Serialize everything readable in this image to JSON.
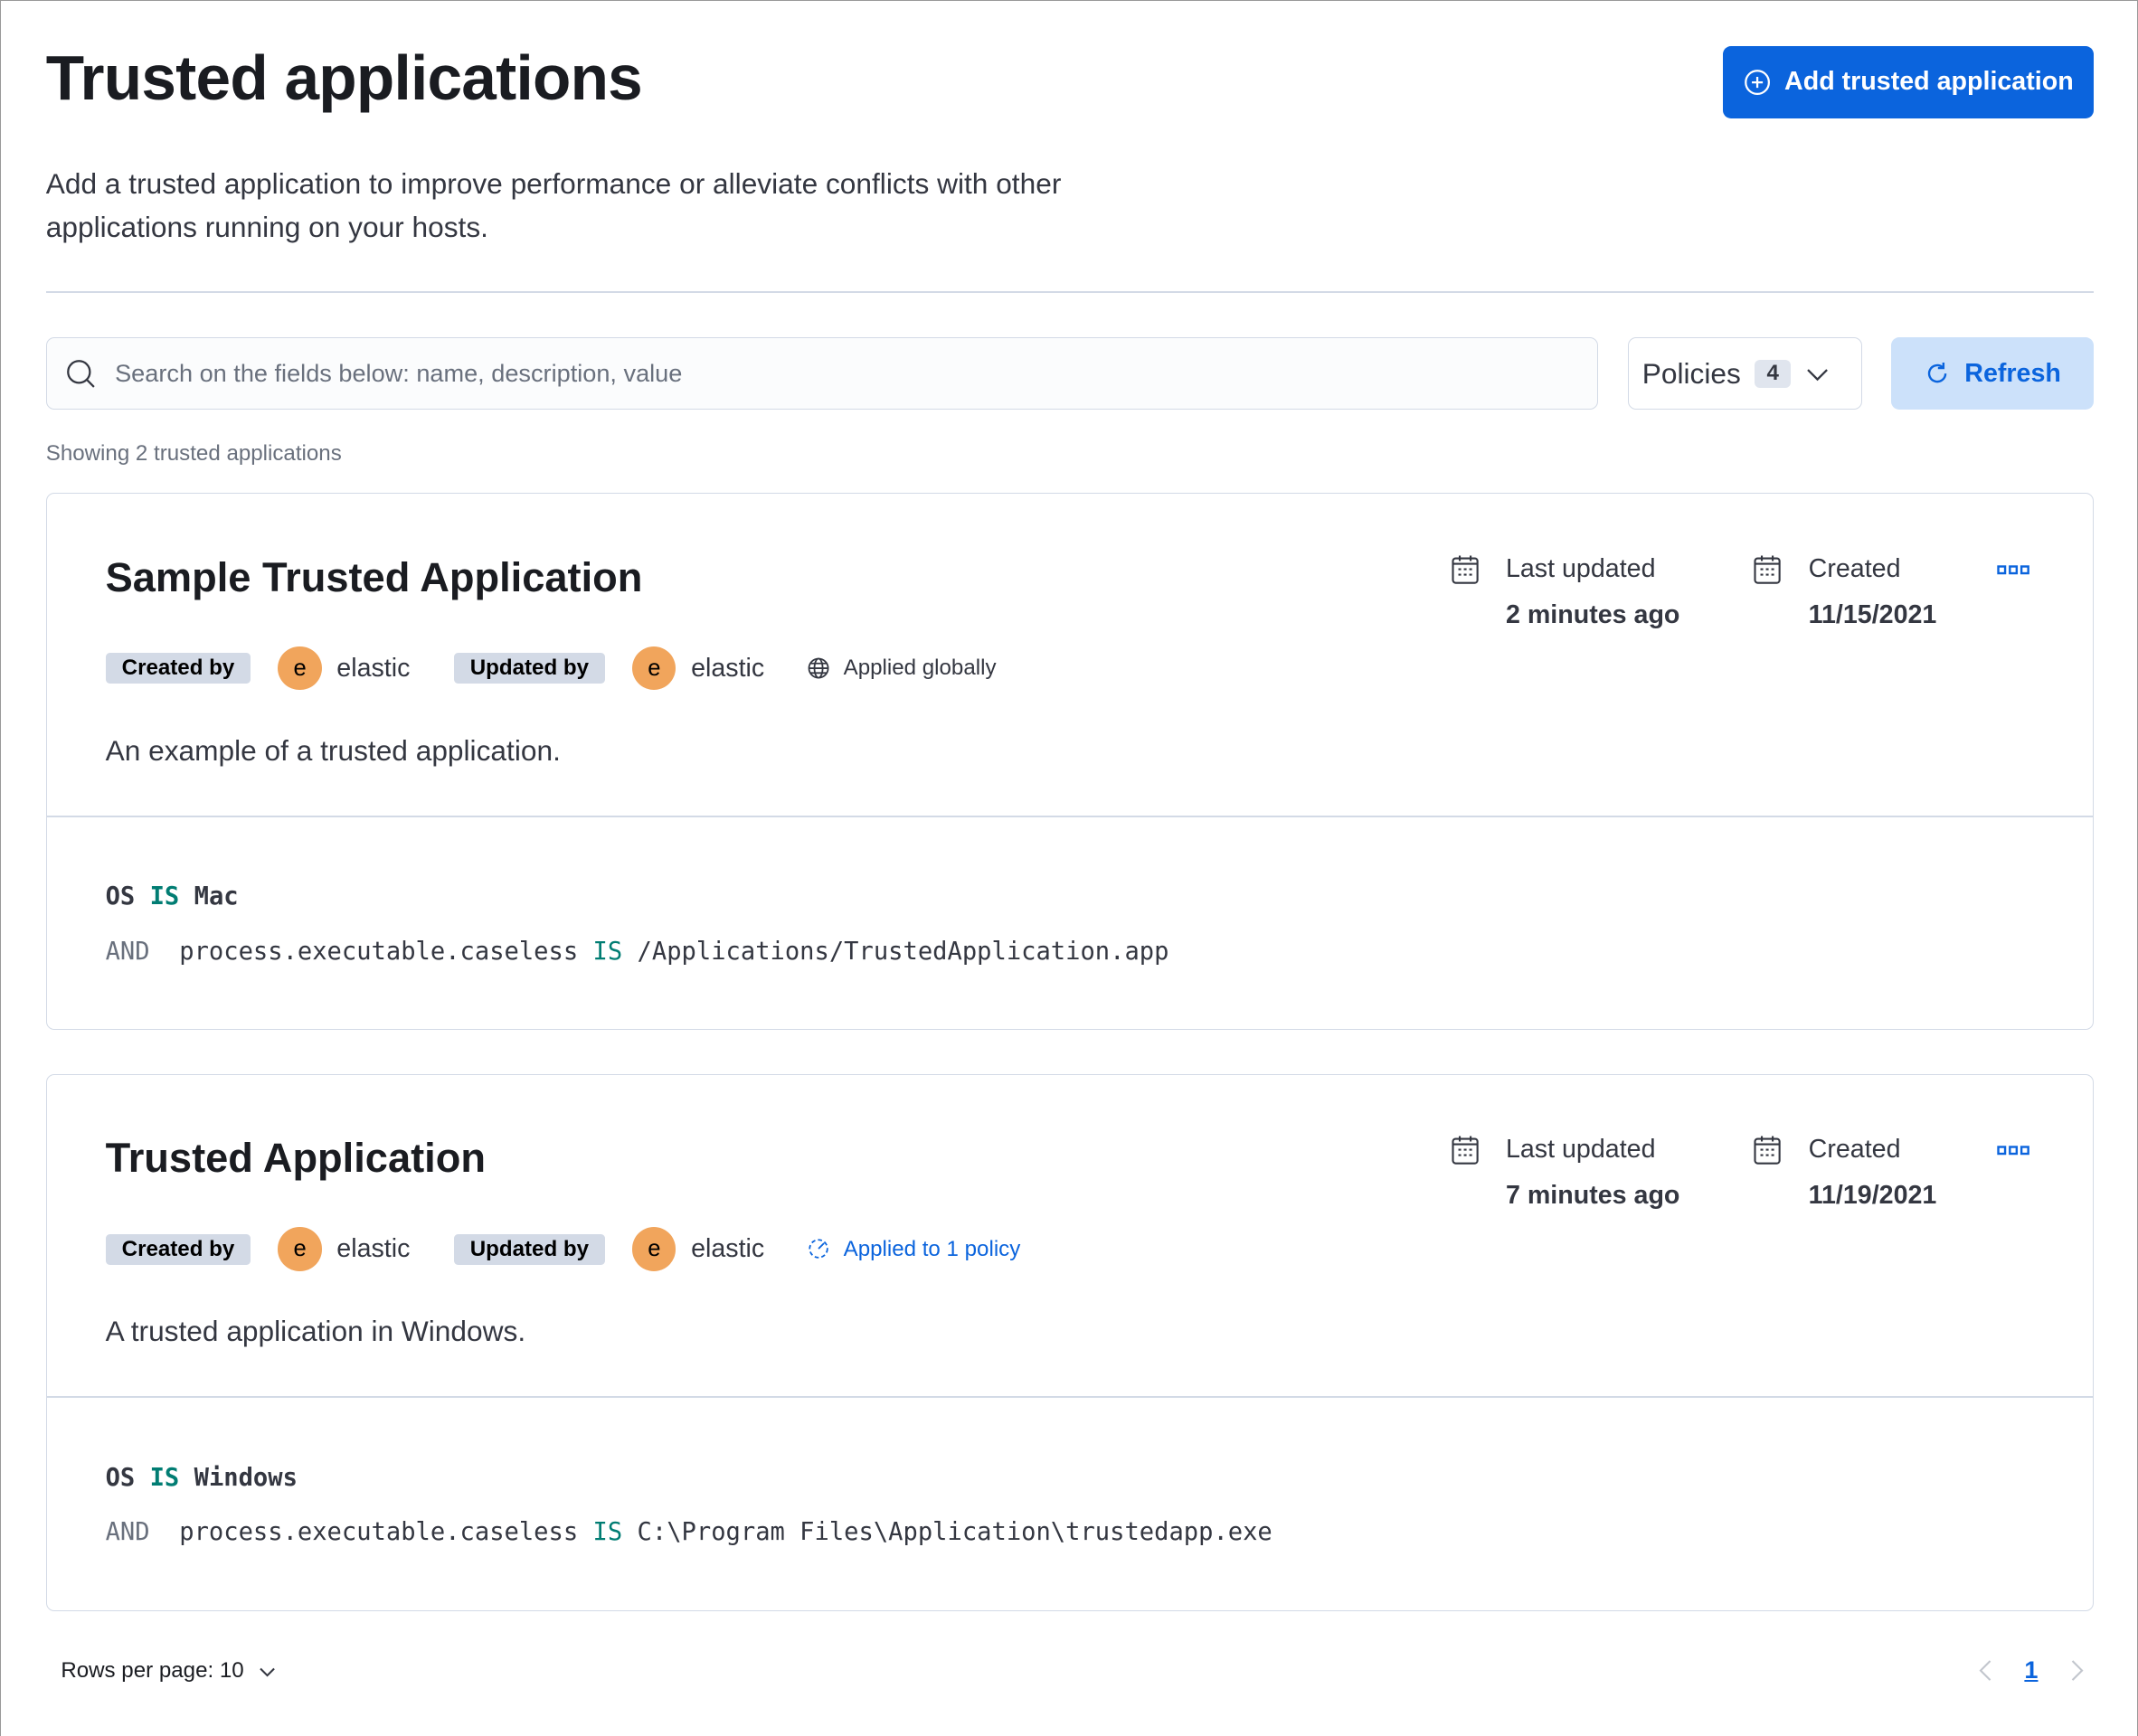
{
  "header": {
    "title": "Trusted applications",
    "add_button": "Add trusted application",
    "description": "Add a trusted application to improve performance or alleviate conflicts with other applications running on your hosts."
  },
  "toolbar": {
    "search_placeholder": "Search on the fields below: name, description, value",
    "policies_label": "Policies",
    "policies_count": "4",
    "refresh_label": "Refresh"
  },
  "showing": "Showing 2 trusted applications",
  "labels": {
    "created_by": "Created by",
    "updated_by": "Updated by",
    "last_updated": "Last updated",
    "created": "Created",
    "and": "AND",
    "is": "IS"
  },
  "cards": [
    {
      "title": "Sample Trusted Application",
      "created_by": "elastic",
      "updated_by": "elastic",
      "avatar": "e",
      "scope": "Applied globally",
      "description": "An example of a trusted application.",
      "last_updated": "2 minutes ago",
      "created": "11/15/2021",
      "os_field": "OS",
      "os_value": "Mac",
      "field": "process.executable.caseless",
      "value": "/Applications/TrustedApplication.app"
    },
    {
      "title": "Trusted Application",
      "created_by": "elastic",
      "updated_by": "elastic",
      "avatar": "e",
      "scope": "Applied to 1 policy",
      "description": "A trusted application in Windows.",
      "last_updated": "7 minutes ago",
      "created": "11/19/2021",
      "os_field": "OS",
      "os_value": "Windows",
      "field": "process.executable.caseless",
      "value": "C:\\Program Files\\Application\\trustedapp.exe"
    }
  ],
  "pagination": {
    "rows_per_page": "Rows per page: 10",
    "current_page": "1"
  },
  "colors": {
    "primary": "#0b64dd",
    "avatar": "#f1a55c",
    "keyword": "#017d73"
  }
}
